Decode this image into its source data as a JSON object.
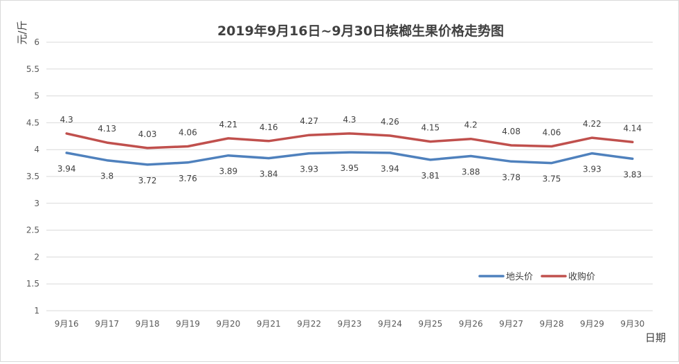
{
  "chart_data": {
    "type": "line",
    "title": "2019年9月16日~9月30日槟榔生果价格走势图",
    "ylabel": "元/斤",
    "xlabel": "日期",
    "ylim": [
      1,
      6
    ],
    "yticks": [
      "1",
      "1.5",
      "2",
      "2.5",
      "3",
      "3.5",
      "4",
      "4.5",
      "5",
      "5.5",
      "6"
    ],
    "grid": true,
    "legend_position": "bottom-right",
    "categories": [
      "9月16",
      "9月17",
      "9月18",
      "9月19",
      "9月20",
      "9月21",
      "9月22",
      "9月23",
      "9月24",
      "9月25",
      "9月26",
      "9月27",
      "9月28",
      "9月29",
      "9月30"
    ],
    "series": [
      {
        "name": "地头价",
        "color": "#4f81bd",
        "values": [
          3.94,
          3.8,
          3.72,
          3.76,
          3.89,
          3.84,
          3.93,
          3.95,
          3.94,
          3.81,
          3.88,
          3.78,
          3.75,
          3.93,
          3.83
        ],
        "labels": [
          "3.94",
          "3.8",
          "3.72",
          "3.76",
          "3.89",
          "3.84",
          "3.93",
          "3.95",
          "3.94",
          "3.81",
          "3.88",
          "3.78",
          "3.75",
          "3.93",
          "3.83"
        ]
      },
      {
        "name": "收购价",
        "color": "#c0504d",
        "values": [
          4.3,
          4.13,
          4.03,
          4.06,
          4.21,
          4.16,
          4.27,
          4.3,
          4.26,
          4.15,
          4.2,
          4.08,
          4.06,
          4.22,
          4.14
        ],
        "labels": [
          "4.3",
          "4.13",
          "4.03",
          "4.06",
          "4.21",
          "4.16",
          "4.27",
          "4.3",
          "4.26",
          "4.15",
          "4.2",
          "4.08",
          "4.06",
          "4.22",
          "4.14"
        ]
      }
    ]
  }
}
